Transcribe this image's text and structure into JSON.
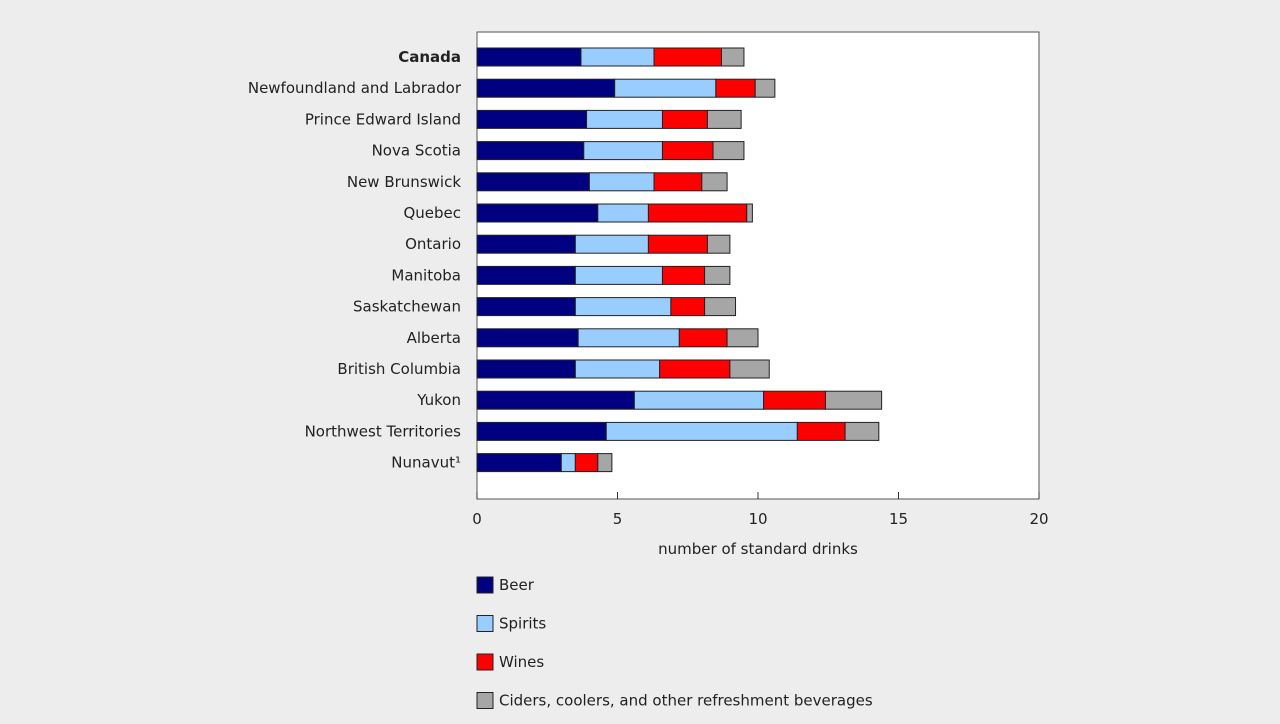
{
  "chart_data": {
    "type": "bar",
    "orientation": "horizontal",
    "stacked": true,
    "categories": [
      "Canada",
      "Newfoundland and Labrador",
      "Prince Edward Island",
      "Nova Scotia",
      "New Brunswick",
      "Quebec",
      "Ontario",
      "Manitoba",
      "Saskatchewan",
      "Alberta",
      "British Columbia",
      "Yukon",
      "Northwest Territories",
      "Nunavut¹"
    ],
    "bold_categories": [
      "Canada"
    ],
    "series": [
      {
        "name": "Beer",
        "color": "#000080",
        "values": [
          3.7,
          4.9,
          3.9,
          3.8,
          4.0,
          4.3,
          3.5,
          3.5,
          3.5,
          3.6,
          3.5,
          5.6,
          4.6,
          3.0
        ]
      },
      {
        "name": "Spirits",
        "color": "#99ccff",
        "values": [
          2.6,
          3.6,
          2.7,
          2.8,
          2.3,
          1.8,
          2.6,
          3.1,
          3.4,
          3.6,
          3.0,
          4.6,
          6.8,
          0.5
        ]
      },
      {
        "name": "Wines",
        "color": "#ff0000",
        "values": [
          2.4,
          1.4,
          1.6,
          1.8,
          1.7,
          3.5,
          2.1,
          1.5,
          1.2,
          1.7,
          2.5,
          2.2,
          1.7,
          0.8
        ]
      },
      {
        "name": "Ciders, coolers, and other refreshment beverages",
        "color": "#a6a6a6",
        "values": [
          0.8,
          0.7,
          1.2,
          1.1,
          0.9,
          0.2,
          0.8,
          0.9,
          1.1,
          1.1,
          1.4,
          2.0,
          1.2,
          0.5
        ]
      }
    ],
    "xlabel": "number of standard drinks",
    "xlim": [
      0,
      20
    ],
    "xticks": [
      "0",
      "5",
      "10",
      "15",
      "20"
    ],
    "grid": false,
    "legend_position": "bottom"
  }
}
